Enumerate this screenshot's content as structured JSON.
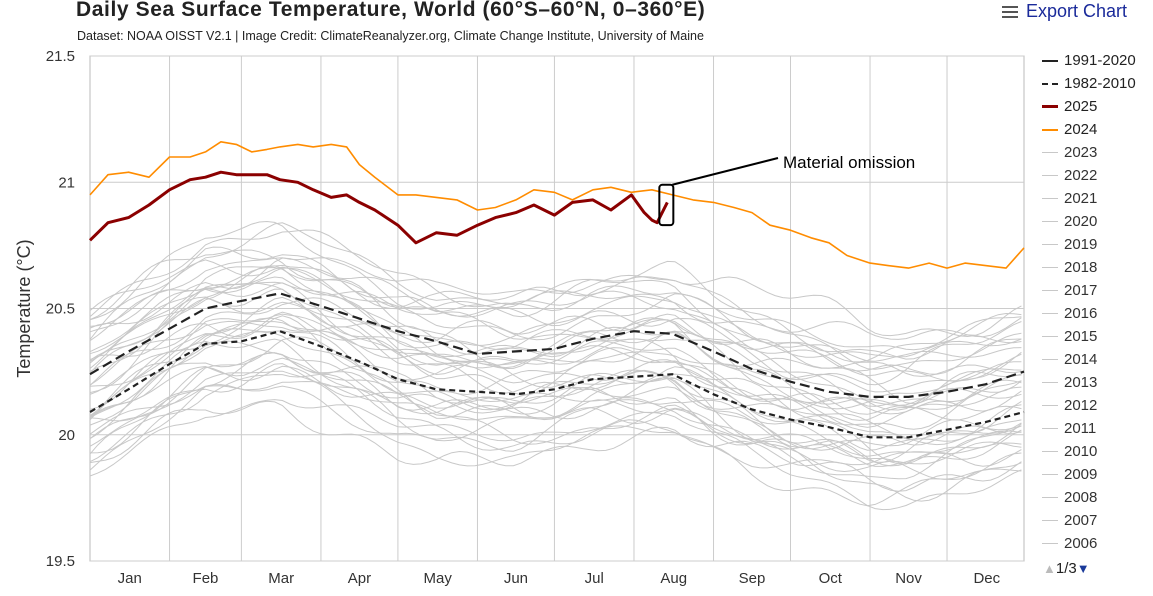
{
  "header": {
    "title": "Daily Sea Surface Temperature, World (60°S–60°N, 0–360°E)",
    "credit": "Dataset: NOAA OISST V2.1 | Image Credit: ClimateReanalyzer.org, Climate Change Institute, University of Maine",
    "export_label": "Export Chart"
  },
  "pager": {
    "label": "1/3"
  },
  "chart_data": {
    "type": "line",
    "ylabel": "Temperature (°C)",
    "ylim": [
      19.5,
      21.5
    ],
    "yticks": [
      "21.5",
      "21",
      "20.5",
      "20",
      "19.5"
    ],
    "months": [
      "Jan",
      "Feb",
      "Mar",
      "Apr",
      "May",
      "Jun",
      "Jul",
      "Aug",
      "Sep",
      "Oct",
      "Nov",
      "Dec"
    ],
    "x_unit": "day of year",
    "grid": true,
    "legend_position": "right",
    "annotation": {
      "text": "Material omission",
      "day": 226
    },
    "series": [
      {
        "name": "1991-2020",
        "color": "#222222",
        "style": "dashed-long",
        "width": 2.2,
        "x": [
          1,
          16,
          32,
          46,
          60,
          75,
          91,
          106,
          121,
          136,
          152,
          167,
          182,
          197,
          213,
          228,
          244,
          259,
          274,
          289,
          305,
          320,
          335,
          350,
          365
        ],
        "y": [
          20.24,
          20.33,
          20.42,
          20.5,
          20.53,
          20.56,
          20.51,
          20.46,
          20.41,
          20.37,
          20.32,
          20.33,
          20.34,
          20.38,
          20.41,
          20.4,
          20.33,
          20.26,
          20.21,
          20.17,
          20.15,
          20.15,
          20.17,
          20.2,
          20.25
        ]
      },
      {
        "name": "1982-2010",
        "color": "#222222",
        "style": "dashed",
        "width": 2.2,
        "x": [
          1,
          16,
          32,
          46,
          60,
          75,
          91,
          106,
          121,
          136,
          152,
          167,
          182,
          197,
          213,
          228,
          244,
          259,
          274,
          289,
          305,
          320,
          335,
          350,
          365
        ],
        "y": [
          20.09,
          20.18,
          20.28,
          20.36,
          20.37,
          20.41,
          20.35,
          20.29,
          20.22,
          20.18,
          20.17,
          20.16,
          20.18,
          20.22,
          20.23,
          20.24,
          20.16,
          20.1,
          20.06,
          20.03,
          19.99,
          19.99,
          20.02,
          20.05,
          20.09
        ]
      },
      {
        "name": "2025",
        "color": "#8b0000",
        "style": "solid",
        "width": 3,
        "x": [
          1,
          8,
          16,
          24,
          32,
          40,
          46,
          52,
          58,
          64,
          70,
          75,
          82,
          88,
          95,
          101,
          106,
          112,
          121,
          128,
          136,
          144,
          152,
          159,
          167,
          174,
          182,
          189,
          197,
          204,
          212,
          217,
          220,
          222,
          224,
          226
        ],
        "y": [
          20.77,
          20.84,
          20.86,
          20.91,
          20.97,
          21.01,
          21.02,
          21.04,
          21.03,
          21.03,
          21.03,
          21.01,
          21.0,
          20.97,
          20.94,
          20.95,
          20.92,
          20.89,
          20.83,
          20.76,
          20.8,
          20.79,
          20.83,
          20.86,
          20.88,
          20.91,
          20.87,
          20.92,
          20.93,
          20.89,
          20.95,
          20.88,
          20.85,
          20.84,
          20.88,
          20.92
        ]
      },
      {
        "name": "2024",
        "color": "#ff8c00",
        "style": "solid",
        "width": 1.6,
        "x": [
          1,
          8,
          16,
          24,
          32,
          40,
          46,
          52,
          58,
          64,
          70,
          75,
          82,
          88,
          95,
          101,
          106,
          112,
          121,
          128,
          136,
          144,
          152,
          159,
          167,
          174,
          182,
          189,
          197,
          204,
          212,
          220,
          228,
          236,
          244,
          252,
          259,
          266,
          274,
          282,
          289,
          296,
          305,
          312,
          320,
          328,
          335,
          342,
          350,
          358,
          365
        ],
        "y": [
          20.95,
          21.03,
          21.04,
          21.02,
          21.1,
          21.1,
          21.12,
          21.16,
          21.15,
          21.12,
          21.13,
          21.14,
          21.15,
          21.14,
          21.15,
          21.14,
          21.07,
          21.02,
          20.95,
          20.95,
          20.94,
          20.93,
          20.89,
          20.9,
          20.93,
          20.97,
          20.96,
          20.93,
          20.97,
          20.98,
          20.96,
          20.97,
          20.95,
          20.93,
          20.92,
          20.9,
          20.88,
          20.83,
          20.81,
          20.78,
          20.76,
          20.71,
          20.68,
          20.67,
          20.66,
          20.68,
          20.66,
          20.68,
          20.67,
          20.66,
          20.74
        ]
      },
      {
        "name": "2023",
        "color": "#c8c8c8",
        "style": "solid",
        "width": 1
      },
      {
        "name": "2022",
        "color": "#c8c8c8",
        "style": "solid",
        "width": 1
      },
      {
        "name": "2021",
        "color": "#c8c8c8",
        "style": "solid",
        "width": 1
      },
      {
        "name": "2020",
        "color": "#c8c8c8",
        "style": "solid",
        "width": 1
      },
      {
        "name": "2019",
        "color": "#c8c8c8",
        "style": "solid",
        "width": 1
      },
      {
        "name": "2018",
        "color": "#c8c8c8",
        "style": "solid",
        "width": 1
      },
      {
        "name": "2017",
        "color": "#c8c8c8",
        "style": "solid",
        "width": 1
      },
      {
        "name": "2016",
        "color": "#c8c8c8",
        "style": "solid",
        "width": 1
      },
      {
        "name": "2015",
        "color": "#c8c8c8",
        "style": "solid",
        "width": 1
      },
      {
        "name": "2014",
        "color": "#c8c8c8",
        "style": "solid",
        "width": 1
      },
      {
        "name": "2013",
        "color": "#c8c8c8",
        "style": "solid",
        "width": 1
      },
      {
        "name": "2012",
        "color": "#c8c8c8",
        "style": "solid",
        "width": 1
      },
      {
        "name": "2011",
        "color": "#c8c8c8",
        "style": "solid",
        "width": 1
      },
      {
        "name": "2010",
        "color": "#c8c8c8",
        "style": "solid",
        "width": 1
      },
      {
        "name": "2009",
        "color": "#c8c8c8",
        "style": "solid",
        "width": 1
      },
      {
        "name": "2008",
        "color": "#c8c8c8",
        "style": "solid",
        "width": 1
      },
      {
        "name": "2007",
        "color": "#c8c8c8",
        "style": "solid",
        "width": 1
      },
      {
        "name": "2006",
        "color": "#c8c8c8",
        "style": "solid",
        "width": 1
      }
    ]
  }
}
